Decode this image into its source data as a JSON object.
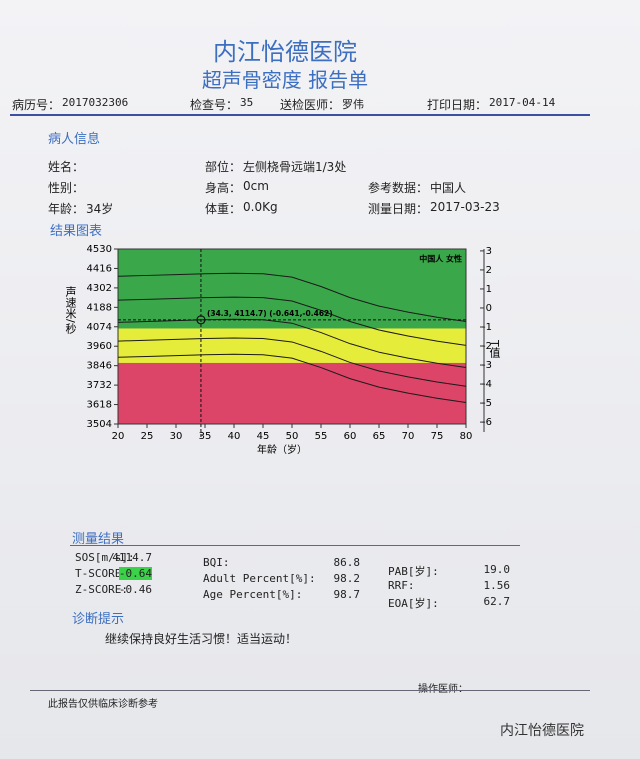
{
  "header": {
    "title": "内江怡德医院",
    "subtitle": "超声骨密度 报告单"
  },
  "info": [
    {
      "label": "病历号：",
      "value": "2017032306"
    },
    {
      "label": "检查号：",
      "value": "35"
    },
    {
      "label": "送检医师：",
      "value": "罗伟"
    },
    {
      "label": "打印日期：",
      "value": "2017-04-14"
    }
  ],
  "patient": {
    "heading": "病人信息",
    "fields": [
      {
        "label": "姓名："
      },
      {
        "label": "部位：",
        "value": "左侧桡骨远端1/3处"
      },
      {
        "label": "性别："
      },
      {
        "label": "身高：",
        "value": "0cm"
      },
      {
        "label": "参考数据：",
        "value": "中国人"
      },
      {
        "label": "年龄：",
        "value": "34岁"
      },
      {
        "label": "体重：",
        "value": "0.0Kg"
      },
      {
        "label": "测量日期：",
        "value": "2017-03-23"
      }
    ]
  },
  "chart": {
    "heading": "结果图表",
    "legend": "中国人 女性",
    "x_label": "年龄（岁）",
    "y_label": "声速米/秒",
    "y2_label": "T值",
    "xlim": [
      20,
      80
    ],
    "xticks": [
      20,
      25,
      30,
      35,
      40,
      45,
      50,
      55,
      60,
      65,
      70,
      75,
      80
    ],
    "ylim": [
      3504,
      4530
    ],
    "yticks": [
      3504,
      3618,
      3732,
      3846,
      3960,
      4074,
      4188,
      4302,
      4416,
      4530
    ],
    "y2lim": [
      3.1,
      -6.1
    ],
    "y2ticks": [
      3,
      2,
      1,
      0,
      -1,
      -2,
      -3,
      -4,
      -5,
      -6
    ],
    "zones": [
      {
        "range": [
          4064,
          4530
        ],
        "color": "#3aa84a"
      },
      {
        "range": [
          3862,
          4064
        ],
        "color": "#e6ec3a"
      },
      {
        "range": [
          3504,
          3862
        ],
        "color": "#dc4468"
      }
    ],
    "curve_color": "#1a1a1a",
    "curve_x": [
      20,
      25,
      30,
      35,
      40,
      45,
      50,
      55,
      60,
      65,
      70,
      75,
      80
    ],
    "curves": [
      {
        "values": [
          4370,
          4375,
          4380,
          4385,
          4388,
          4385,
          4365,
          4310,
          4245,
          4195,
          4160,
          4130,
          4105
        ]
      },
      {
        "values": [
          4230,
          4235,
          4240,
          4245,
          4248,
          4245,
          4225,
          4170,
          4105,
          4055,
          4020,
          3990,
          3965
        ]
      },
      {
        "values": [
          4100,
          4105,
          4110,
          4115,
          4118,
          4115,
          4095,
          4040,
          3975,
          3925,
          3890,
          3860,
          3835
        ]
      },
      {
        "values": [
          3990,
          3995,
          4000,
          4005,
          4008,
          4005,
          3985,
          3930,
          3865,
          3815,
          3780,
          3750,
          3725
        ]
      },
      {
        "values": [
          3895,
          3900,
          3905,
          3910,
          3913,
          3910,
          3890,
          3835,
          3770,
          3720,
          3685,
          3655,
          3630
        ]
      }
    ],
    "point": {
      "x": 34.3,
      "y": 4114.7,
      "label": "(34.3, 4114.7) (-0.641,-0.462)"
    }
  },
  "results": {
    "heading": "测量结果",
    "items": [
      {
        "label": "SOS[m/s]:",
        "value": "4114.7"
      },
      {
        "label": "T-SCORE:",
        "value": "-0.64"
      },
      {
        "label": "Z-SCORE:",
        "value": "-0.46"
      },
      {
        "label": "BQI:",
        "value": "86.8"
      },
      {
        "label": "Adult Percent[%]:",
        "value": "98.2"
      },
      {
        "label": "Age Percent[%]:",
        "value": "98.7"
      },
      {
        "label": "PAB[岁]:",
        "value": "19.0"
      },
      {
        "label": "RRF:",
        "value": "1.56"
      },
      {
        "label": "EOA[岁]:",
        "value": "62.7"
      }
    ]
  },
  "diagnosis": {
    "heading": "诊断提示",
    "text": "继续保持良好生活习惯！适当运动！"
  },
  "operator": "操作医师：",
  "footer": "此报告仅供临床诊断参考",
  "watermark": "内江怡德医院"
}
